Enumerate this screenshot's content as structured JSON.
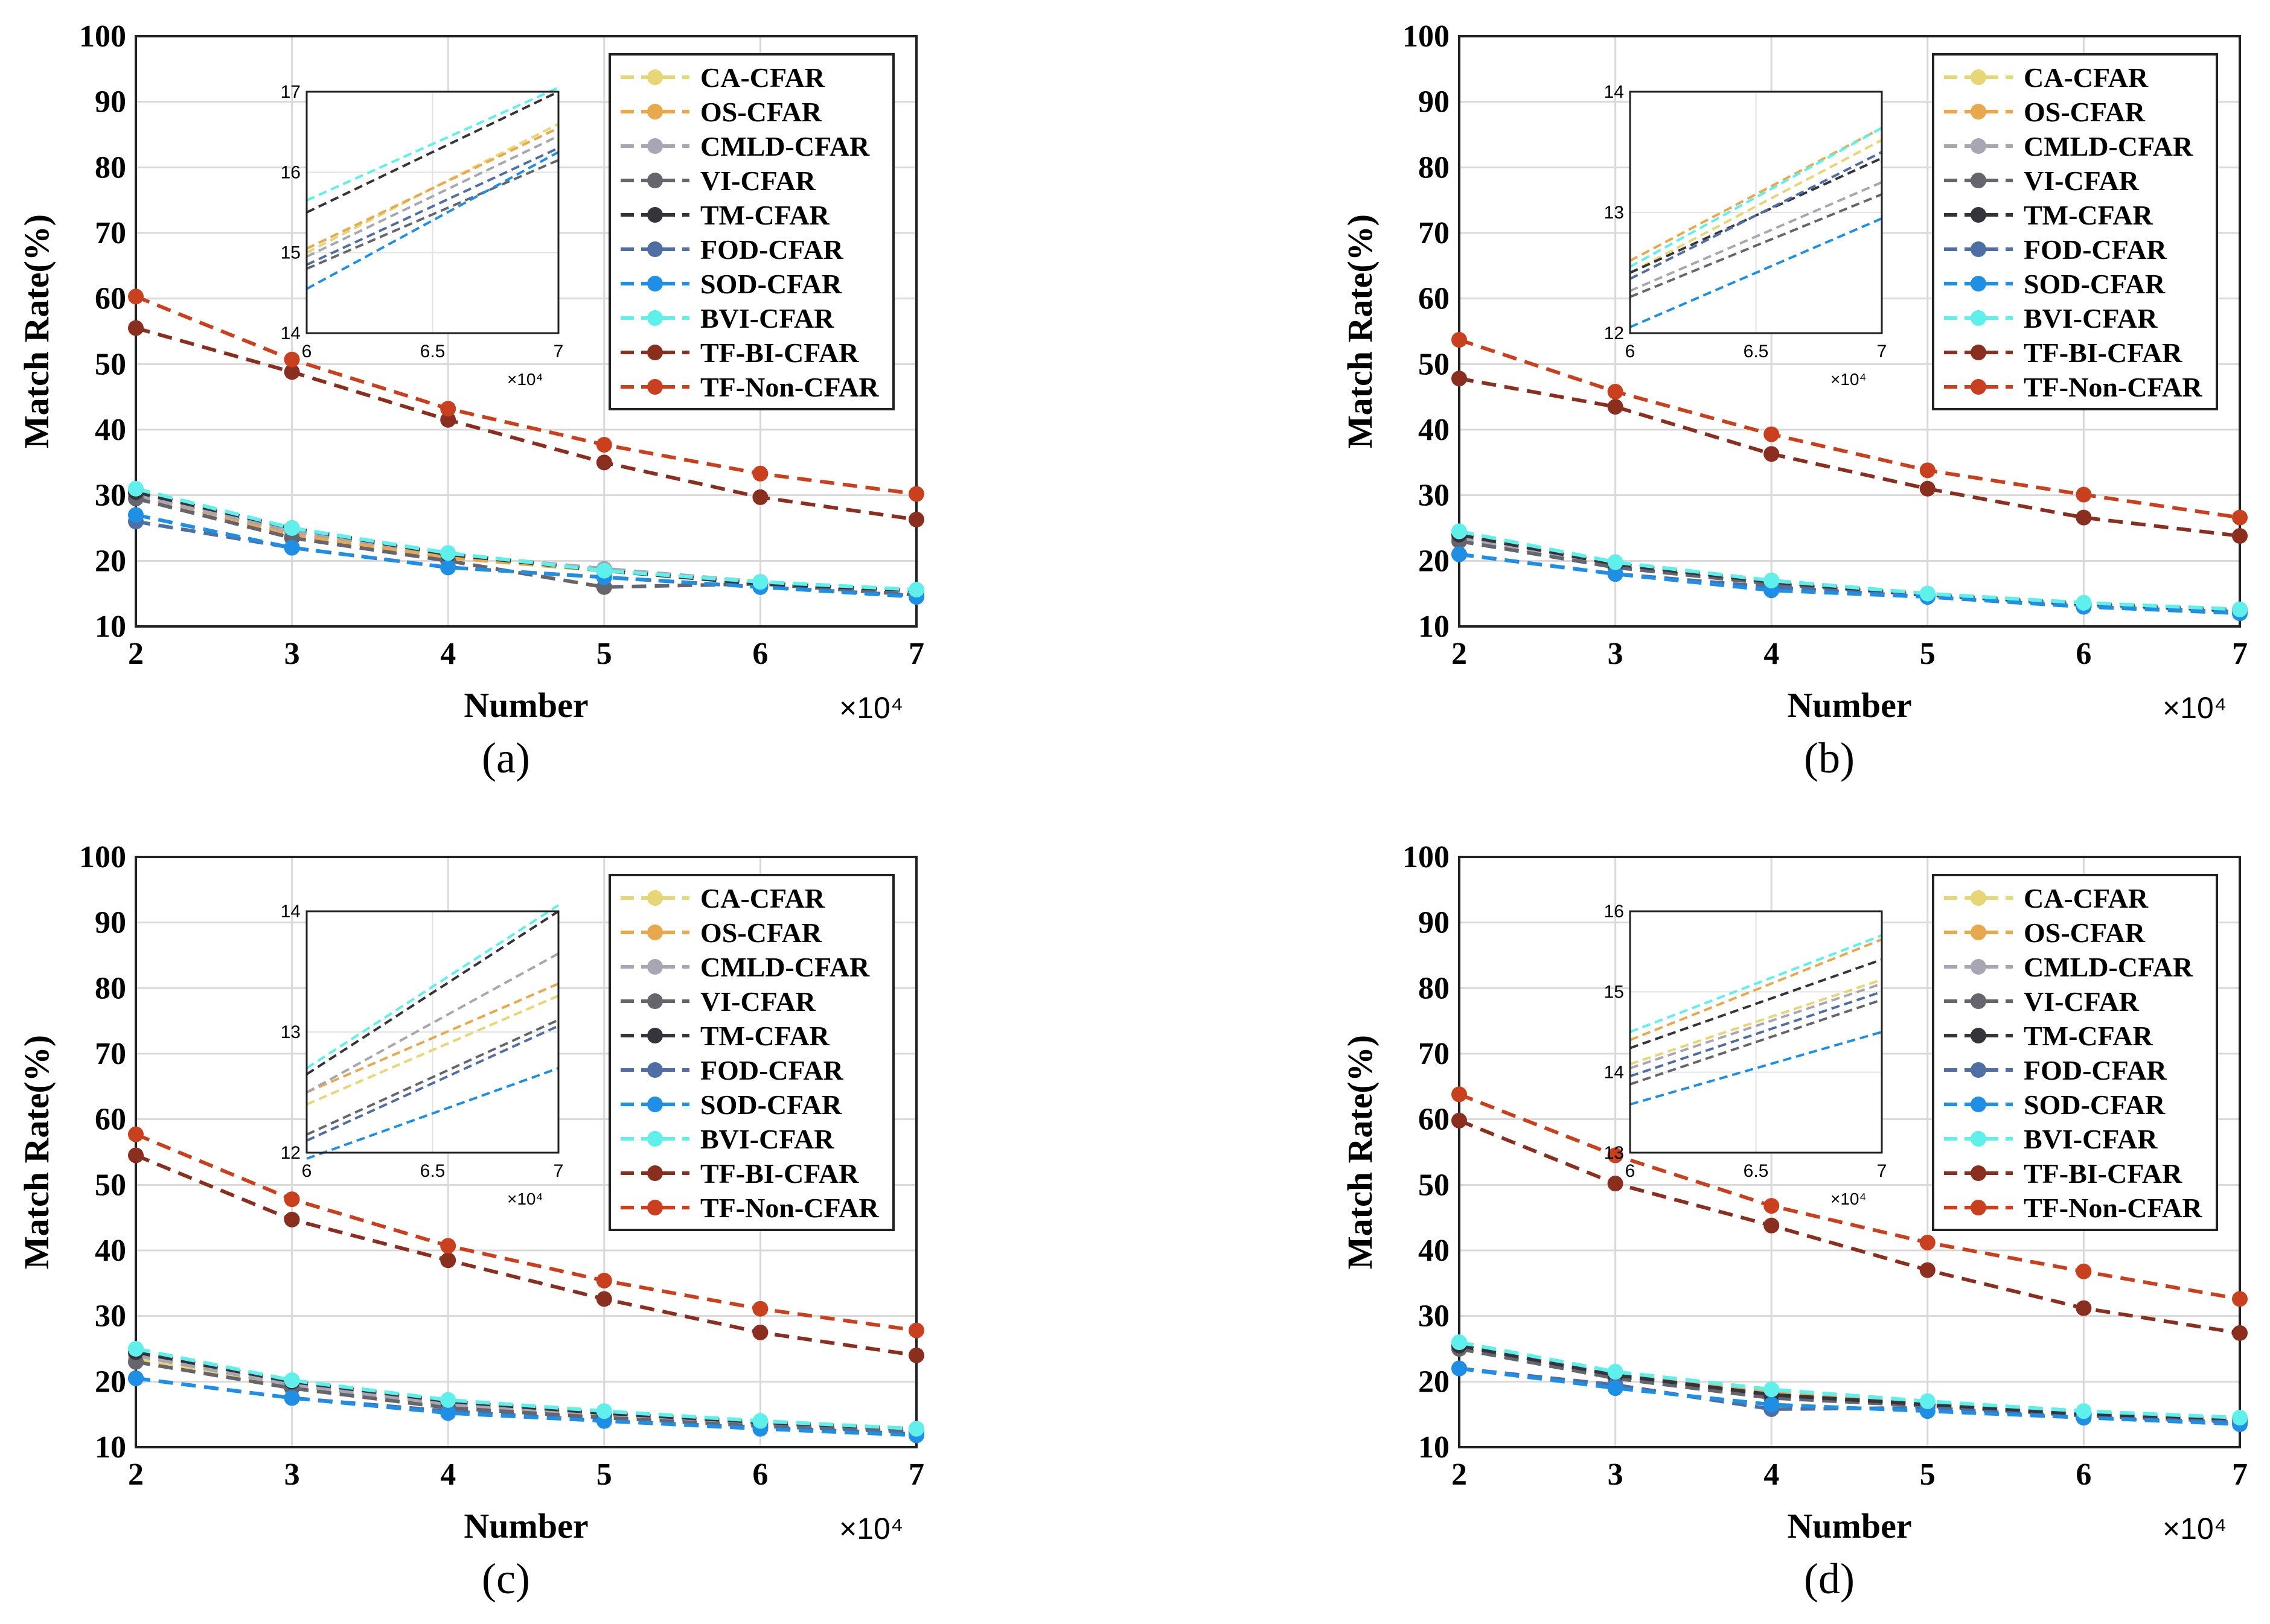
{
  "figure": {
    "x_multiplier": "×10⁴",
    "inset_multiplier": "×10⁴"
  },
  "series_meta": [
    {
      "name": "CA-CFAR",
      "color": "#e6d675"
    },
    {
      "name": "OS-CFAR",
      "color": "#e8a84e"
    },
    {
      "name": "CMLD-CFAR",
      "color": "#a9a6b3"
    },
    {
      "name": "VI-CFAR",
      "color": "#66656e"
    },
    {
      "name": "TM-CFAR",
      "color": "#34343a"
    },
    {
      "name": "FOD-CFAR",
      "color": "#4f6ea3"
    },
    {
      "name": "SOD-CFAR",
      "color": "#1f8fe6"
    },
    {
      "name": "BVI-CFAR",
      "color": "#5ff0ec"
    },
    {
      "name": "TF-BI-CFAR",
      "color": "#8a2e1f"
    },
    {
      "name": "TF-Non-CFAR",
      "color": "#c9401f"
    }
  ],
  "chart_data": [
    {
      "type": "line",
      "label": "(a)",
      "xlabel": "Number",
      "ylabel": "Match Rate(%)",
      "x": [
        2,
        3,
        4,
        5,
        6,
        7
      ],
      "xlim": [
        2,
        7
      ],
      "ylim": [
        10,
        100
      ],
      "xticks": [
        "2",
        "3",
        "4",
        "5",
        "6",
        "7"
      ],
      "yticks": [
        "10",
        "20",
        "30",
        "40",
        "50",
        "60",
        "70",
        "80",
        "90",
        "100"
      ],
      "series": [
        {
          "name": "CA-CFAR",
          "values": [
            30.5,
            24.5,
            20.5,
            18.5,
            16.5,
            15.0
          ]
        },
        {
          "name": "OS-CFAR",
          "values": [
            30.0,
            24.0,
            20.5,
            18.5,
            16.5,
            15.0
          ]
        },
        {
          "name": "CMLD-CFAR",
          "values": [
            30.0,
            24.5,
            21.0,
            18.8,
            16.8,
            15.2
          ]
        },
        {
          "name": "VI-CFAR",
          "values": [
            29.5,
            23.5,
            20.0,
            16.0,
            16.5,
            14.8
          ]
        },
        {
          "name": "TM-CFAR",
          "values": [
            30.5,
            25.0,
            21.0,
            18.5,
            16.5,
            15.5
          ]
        },
        {
          "name": "FOD-CFAR",
          "values": [
            26.0,
            22.0,
            19.0,
            17.5,
            16.0,
            14.7
          ]
        },
        {
          "name": "SOD-CFAR",
          "values": [
            27.0,
            22.0,
            19.0,
            17.5,
            16.0,
            14.5
          ]
        },
        {
          "name": "BVI-CFAR",
          "values": [
            31.0,
            25.0,
            21.2,
            18.5,
            16.8,
            15.6
          ]
        },
        {
          "name": "TF-BI-CFAR",
          "values": [
            55.5,
            48.8,
            41.5,
            35.0,
            29.7,
            26.3
          ]
        },
        {
          "name": "TF-Non-CFAR",
          "values": [
            60.3,
            50.7,
            43.2,
            37.7,
            33.3,
            30.2
          ]
        }
      ],
      "inset": {
        "xlim": [
          6,
          7
        ],
        "ylim": [
          14,
          17
        ],
        "xticks": [
          "6",
          "6.5",
          "7"
        ],
        "yticks": [
          "14",
          "15",
          "16",
          "17"
        ],
        "series": [
          {
            "name": "CA-CFAR",
            "values": [
              15.0,
              16.6
            ]
          },
          {
            "name": "OS-CFAR",
            "values": [
              15.05,
              16.55
            ]
          },
          {
            "name": "CMLD-CFAR",
            "values": [
              14.95,
              16.45
            ]
          },
          {
            "name": "VI-CFAR",
            "values": [
              14.8,
              16.15
            ]
          },
          {
            "name": "TM-CFAR",
            "values": [
              15.5,
              17.0
            ]
          },
          {
            "name": "FOD-CFAR",
            "values": [
              14.85,
              16.3
            ]
          },
          {
            "name": "SOD-CFAR",
            "values": [
              14.55,
              16.25
            ]
          },
          {
            "name": "BVI-CFAR",
            "values": [
              15.65,
              17.05
            ]
          }
        ]
      }
    },
    {
      "type": "line",
      "label": "(b)",
      "xlabel": "Number",
      "ylabel": "Match Rate(%)",
      "x": [
        2,
        3,
        4,
        5,
        6,
        7
      ],
      "xlim": [
        2,
        7
      ],
      "ylim": [
        10,
        100
      ],
      "xticks": [
        "2",
        "3",
        "4",
        "5",
        "6",
        "7"
      ],
      "yticks": [
        "10",
        "20",
        "30",
        "40",
        "50",
        "60",
        "70",
        "80",
        "90",
        "100"
      ],
      "series": [
        {
          "name": "CA-CFAR",
          "values": [
            23.5,
            19.5,
            16.5,
            15.0,
            13.5,
            12.5
          ]
        },
        {
          "name": "OS-CFAR",
          "values": [
            24.0,
            19.5,
            17.0,
            15.0,
            13.5,
            12.6
          ]
        },
        {
          "name": "CMLD-CFAR",
          "values": [
            23.5,
            19.0,
            16.5,
            14.8,
            13.2,
            12.4
          ]
        },
        {
          "name": "VI-CFAR",
          "values": [
            23.0,
            19.0,
            16.5,
            14.8,
            13.3,
            12.3
          ]
        },
        {
          "name": "TM-CFAR",
          "values": [
            24.0,
            19.5,
            16.8,
            14.8,
            13.5,
            12.5
          ]
        },
        {
          "name": "FOD-CFAR",
          "values": [
            21.0,
            18.0,
            16.0,
            14.5,
            13.0,
            12.2
          ]
        },
        {
          "name": "SOD-CFAR",
          "values": [
            21.0,
            18.0,
            15.5,
            14.5,
            13.0,
            12.0
          ]
        },
        {
          "name": "BVI-CFAR",
          "values": [
            24.5,
            19.8,
            17.0,
            15.0,
            13.6,
            12.6
          ]
        },
        {
          "name": "TF-BI-CFAR",
          "values": [
            47.8,
            43.5,
            36.3,
            31.0,
            26.6,
            23.8
          ]
        },
        {
          "name": "TF-Non-CFAR",
          "values": [
            53.7,
            45.8,
            39.3,
            33.8,
            30.1,
            26.6
          ]
        }
      ],
      "inset": {
        "xlim": [
          6,
          7
        ],
        "ylim": [
          12,
          14
        ],
        "xticks": [
          "6",
          "6.5",
          "7"
        ],
        "yticks": [
          "12",
          "13",
          "14"
        ],
        "series": [
          {
            "name": "CA-CFAR",
            "values": [
              12.5,
              13.6
            ]
          },
          {
            "name": "OS-CFAR",
            "values": [
              12.6,
              13.7
            ]
          },
          {
            "name": "CMLD-CFAR",
            "values": [
              12.35,
              13.25
            ]
          },
          {
            "name": "VI-CFAR",
            "values": [
              12.3,
              13.15
            ]
          },
          {
            "name": "TM-CFAR",
            "values": [
              12.5,
              13.45
            ]
          },
          {
            "name": "FOD-CFAR",
            "values": [
              12.45,
              13.5
            ]
          },
          {
            "name": "SOD-CFAR",
            "values": [
              12.05,
              12.95
            ]
          },
          {
            "name": "BVI-CFAR",
            "values": [
              12.55,
              13.7
            ]
          }
        ]
      }
    },
    {
      "type": "line",
      "label": "(c)",
      "xlabel": "Number",
      "ylabel": "Match Rate(%)",
      "x": [
        2,
        3,
        4,
        5,
        6,
        7
      ],
      "xlim": [
        2,
        7
      ],
      "ylim": [
        10,
        100
      ],
      "xticks": [
        "2",
        "3",
        "4",
        "5",
        "6",
        "7"
      ],
      "yticks": [
        "10",
        "20",
        "30",
        "40",
        "50",
        "60",
        "70",
        "80",
        "90",
        "100"
      ],
      "series": [
        {
          "name": "CA-CFAR",
          "values": [
            23.5,
            19.0,
            16.5,
            14.8,
            13.3,
            12.5
          ]
        },
        {
          "name": "OS-CFAR",
          "values": [
            24.0,
            19.5,
            17.0,
            15.0,
            13.5,
            12.6
          ]
        },
        {
          "name": "CMLD-CFAR",
          "values": [
            24.0,
            19.5,
            16.5,
            15.0,
            13.5,
            12.5
          ]
        },
        {
          "name": "VI-CFAR",
          "values": [
            23.0,
            19.0,
            16.0,
            14.5,
            13.2,
            12.3
          ]
        },
        {
          "name": "TM-CFAR",
          "values": [
            24.5,
            20.0,
            17.0,
            15.2,
            13.8,
            12.8
          ]
        },
        {
          "name": "FOD-CFAR",
          "values": [
            20.5,
            17.5,
            15.5,
            14.0,
            13.0,
            12.0
          ]
        },
        {
          "name": "SOD-CFAR",
          "values": [
            20.5,
            17.5,
            15.2,
            14.0,
            12.8,
            11.8
          ]
        },
        {
          "name": "BVI-CFAR",
          "values": [
            25.0,
            20.2,
            17.2,
            15.5,
            14.0,
            12.8
          ]
        },
        {
          "name": "TF-BI-CFAR",
          "values": [
            54.5,
            44.7,
            38.5,
            32.6,
            27.5,
            24.0
          ]
        },
        {
          "name": "TF-Non-CFAR",
          "values": [
            57.7,
            47.8,
            40.7,
            35.4,
            31.1,
            27.8
          ]
        }
      ],
      "inset": {
        "xlim": [
          6,
          7
        ],
        "ylim": [
          12,
          14
        ],
        "xticks": [
          "6",
          "6.5",
          "7"
        ],
        "yticks": [
          "12",
          "13",
          "14"
        ],
        "series": [
          {
            "name": "CA-CFAR",
            "values": [
              12.4,
              13.3
            ]
          },
          {
            "name": "OS-CFAR",
            "values": [
              12.5,
              13.4
            ]
          },
          {
            "name": "CMLD-CFAR",
            "values": [
              12.5,
              13.65
            ]
          },
          {
            "name": "VI-CFAR",
            "values": [
              12.15,
              13.1
            ]
          },
          {
            "name": "TM-CFAR",
            "values": [
              12.65,
              14.0
            ]
          },
          {
            "name": "FOD-CFAR",
            "values": [
              12.1,
              13.05
            ]
          },
          {
            "name": "SOD-CFAR",
            "values": [
              11.95,
              12.7
            ]
          },
          {
            "name": "BVI-CFAR",
            "values": [
              12.7,
              14.05
            ]
          }
        ]
      }
    },
    {
      "type": "line",
      "label": "(d)",
      "xlabel": "Number",
      "ylabel": "Match Rate(%)",
      "x": [
        2,
        3,
        4,
        5,
        6,
        7
      ],
      "xlim": [
        2,
        7
      ],
      "ylim": [
        10,
        100
      ],
      "xticks": [
        "2",
        "3",
        "4",
        "5",
        "6",
        "7"
      ],
      "yticks": [
        "10",
        "20",
        "30",
        "40",
        "50",
        "60",
        "70",
        "80",
        "90",
        "100"
      ],
      "series": [
        {
          "name": "CA-CFAR",
          "values": [
            25.0,
            21.0,
            18.0,
            16.5,
            15.0,
            14.0
          ]
        },
        {
          "name": "OS-CFAR",
          "values": [
            25.5,
            21.0,
            18.5,
            16.8,
            15.3,
            14.2
          ]
        },
        {
          "name": "CMLD-CFAR",
          "values": [
            25.0,
            20.8,
            18.0,
            16.5,
            15.0,
            14.1
          ]
        },
        {
          "name": "VI-CFAR",
          "values": [
            25.0,
            20.5,
            17.5,
            16.3,
            14.8,
            13.9
          ]
        },
        {
          "name": "TM-CFAR",
          "values": [
            25.5,
            21.0,
            18.0,
            16.5,
            15.0,
            14.3
          ]
        },
        {
          "name": "FOD-CFAR",
          "values": [
            22.0,
            19.5,
            15.8,
            16.0,
            14.5,
            13.8
          ]
        },
        {
          "name": "SOD-CFAR",
          "values": [
            22.0,
            19.0,
            16.5,
            15.5,
            14.5,
            13.5
          ]
        },
        {
          "name": "BVI-CFAR",
          "values": [
            26.0,
            21.5,
            18.8,
            17.0,
            15.5,
            14.5
          ]
        },
        {
          "name": "TF-BI-CFAR",
          "values": [
            59.8,
            50.2,
            43.8,
            37.0,
            31.2,
            27.4
          ]
        },
        {
          "name": "TF-Non-CFAR",
          "values": [
            63.8,
            54.5,
            46.8,
            41.2,
            36.8,
            32.6
          ]
        }
      ],
      "inset": {
        "xlim": [
          6,
          7
        ],
        "ylim": [
          13,
          16
        ],
        "xticks": [
          "6",
          "6.5",
          "7"
        ],
        "yticks": [
          "13",
          "14",
          "15",
          "16"
        ],
        "series": [
          {
            "name": "CA-CFAR",
            "values": [
              14.1,
              15.15
            ]
          },
          {
            "name": "OS-CFAR",
            "values": [
              14.4,
              15.65
            ]
          },
          {
            "name": "CMLD-CFAR",
            "values": [
              14.05,
              15.1
            ]
          },
          {
            "name": "VI-CFAR",
            "values": [
              13.85,
              14.9
            ]
          },
          {
            "name": "TM-CFAR",
            "values": [
              14.3,
              15.4
            ]
          },
          {
            "name": "FOD-CFAR",
            "values": [
              13.95,
              15.0
            ]
          },
          {
            "name": "SOD-CFAR",
            "values": [
              13.6,
              14.5
            ]
          },
          {
            "name": "BVI-CFAR",
            "values": [
              14.5,
              15.7
            ]
          }
        ]
      }
    }
  ]
}
